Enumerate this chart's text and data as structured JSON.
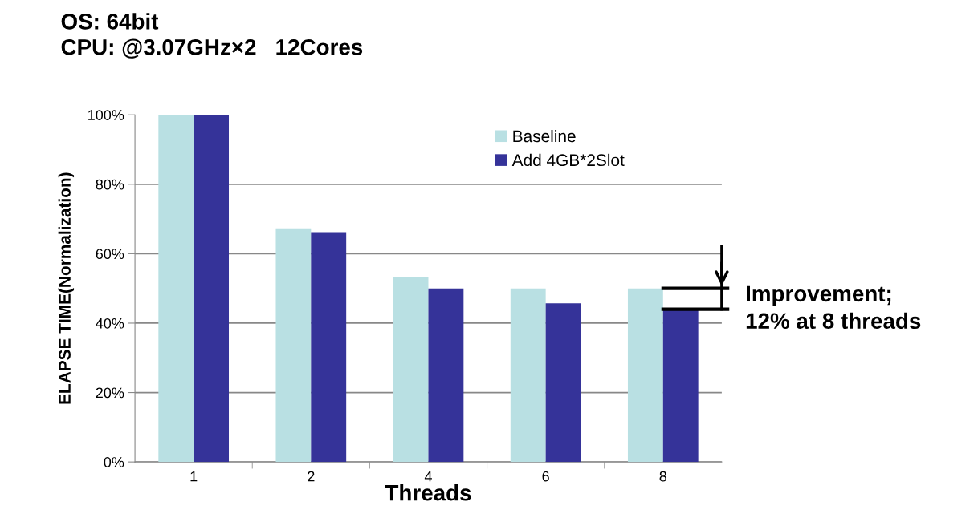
{
  "chart_data": {
    "type": "bar",
    "title": "OS: 64bit\nCPU: @3.07GHz×2   12Cores",
    "xlabel": "Threads",
    "ylabel": "ELAPSE TIME(Normalization)",
    "categories": [
      "1",
      "2",
      "4",
      "6",
      "8"
    ],
    "series": [
      {
        "name": "Baseline",
        "color": "#b9e0e3",
        "values": [
          100,
          67.3,
          53.3,
          50,
          50
        ]
      },
      {
        "name": "Add 4GB*2Slot",
        "color": "#353399",
        "values": [
          100,
          66.2,
          50,
          45.7,
          44
        ]
      }
    ],
    "ylim": [
      0,
      100
    ],
    "yticks": [
      {
        "value": 0,
        "label": "0%"
      },
      {
        "value": 20,
        "label": "20%"
      },
      {
        "value": 40,
        "label": "40%"
      },
      {
        "value": 60,
        "label": "60%"
      },
      {
        "value": 80,
        "label": "80%"
      },
      {
        "value": 100,
        "label": "100%"
      }
    ],
    "grid": "y",
    "legend": "top right",
    "annotations": [
      {
        "text": "Improvement;\n12% at 8 threads",
        "x": "8",
        "y": 44
      }
    ]
  }
}
